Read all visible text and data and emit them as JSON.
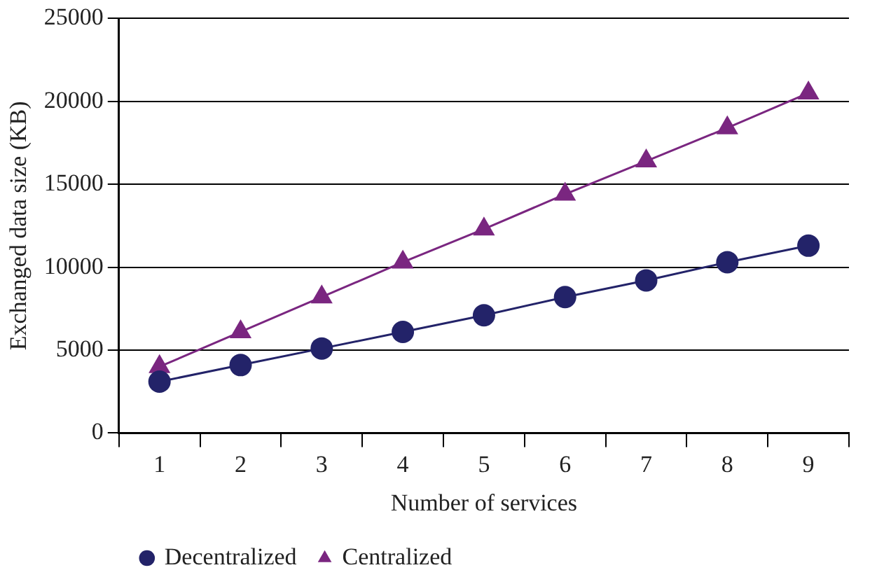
{
  "chart_data": {
    "type": "line",
    "xlabel": "Number of services",
    "ylabel": "Exchanged data size (KB)",
    "categories": [
      "1",
      "2",
      "3",
      "4",
      "5",
      "6",
      "7",
      "8",
      "9"
    ],
    "series": [
      {
        "name": "Decentralized",
        "color": "#232369",
        "marker": "circle",
        "values": [
          3100,
          4100,
          5100,
          6100,
          7100,
          8200,
          9200,
          10300,
          11300
        ]
      },
      {
        "name": "Centralized",
        "color": "#7a2680",
        "marker": "triangle",
        "values": [
          4000,
          6100,
          8200,
          10300,
          12300,
          14400,
          16400,
          18400,
          20500
        ]
      }
    ],
    "ylim": [
      0,
      25000
    ],
    "yticks": [
      0,
      5000,
      10000,
      15000,
      20000,
      25000
    ],
    "grid": "y",
    "legend": "bottom left",
    "line_style": "solid"
  }
}
